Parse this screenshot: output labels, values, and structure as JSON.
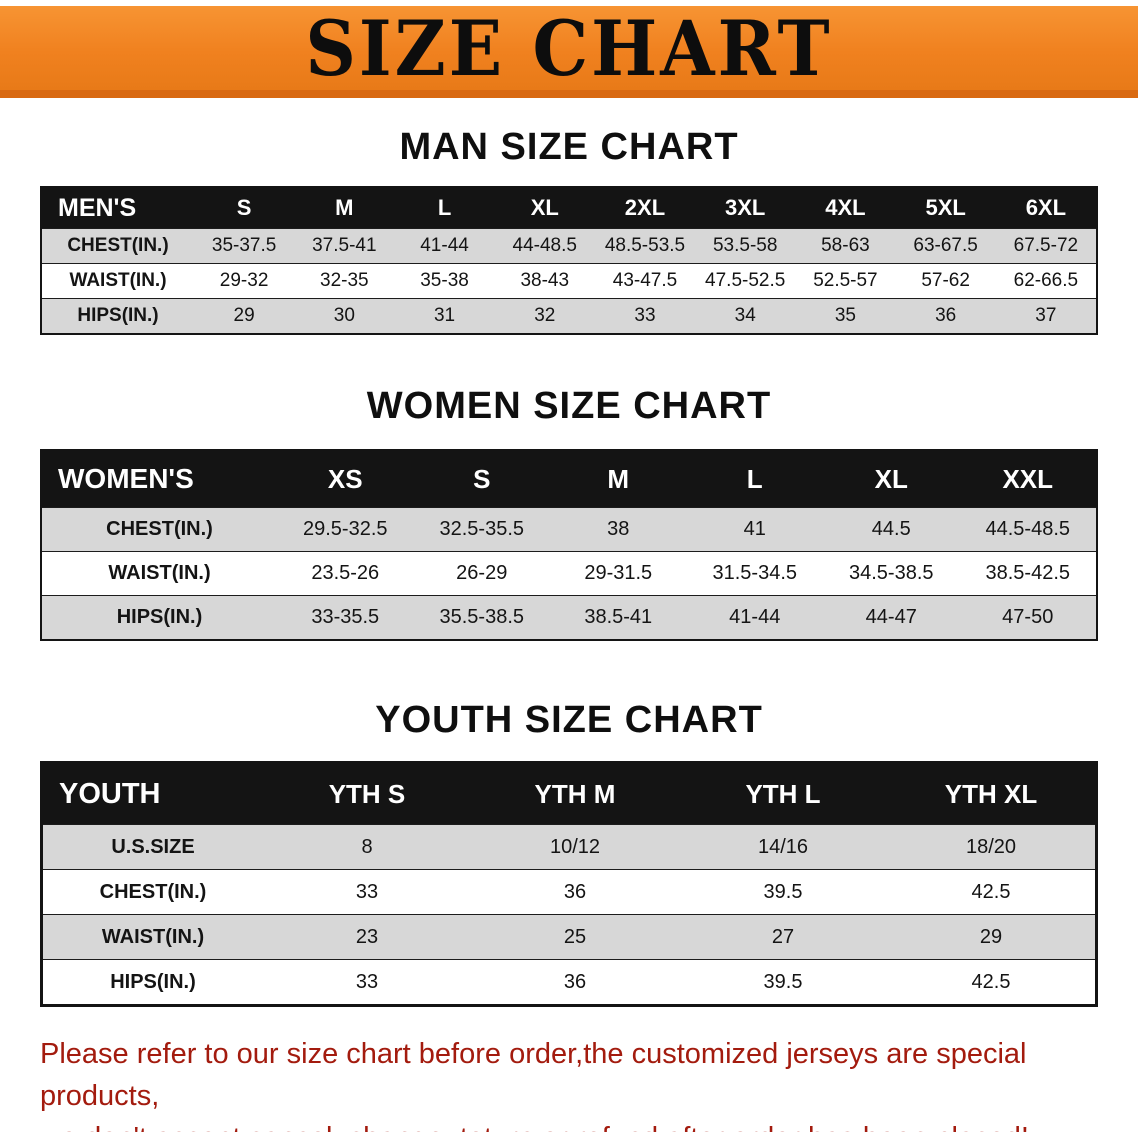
{
  "banner": {
    "title": "SIZE CHART"
  },
  "tables": {
    "men": {
      "heading": "MAN SIZE CHART",
      "label": "MEN'S",
      "columns": [
        "S",
        "M",
        "L",
        "XL",
        "2XL",
        "3XL",
        "4XL",
        "5XL",
        "6XL"
      ],
      "rows": [
        {
          "label": "CHEST(IN.)",
          "values": [
            "35-37.5",
            "37.5-41",
            "41-44",
            "44-48.5",
            "48.5-53.5",
            "53.5-58",
            "58-63",
            "63-67.5",
            "67.5-72"
          ]
        },
        {
          "label": "WAIST(IN.)",
          "values": [
            "29-32",
            "32-35",
            "35-38",
            "38-43",
            "43-47.5",
            "47.5-52.5",
            "52.5-57",
            "57-62",
            "62-66.5"
          ]
        },
        {
          "label": "HIPS(IN.)",
          "values": [
            "29",
            "30",
            "31",
            "32",
            "33",
            "34",
            "35",
            "36",
            "37"
          ]
        }
      ]
    },
    "women": {
      "heading": "WOMEN SIZE CHART",
      "label": "WOMEN'S",
      "columns": [
        "XS",
        "S",
        "M",
        "L",
        "XL",
        "XXL"
      ],
      "rows": [
        {
          "label": "CHEST(IN.)",
          "values": [
            "29.5-32.5",
            "32.5-35.5",
            "38",
            "41",
            "44.5",
            "44.5-48.5"
          ]
        },
        {
          "label": "WAIST(IN.)",
          "values": [
            "23.5-26",
            "26-29",
            "29-31.5",
            "31.5-34.5",
            "34.5-38.5",
            "38.5-42.5"
          ]
        },
        {
          "label": "HIPS(IN.)",
          "values": [
            "33-35.5",
            "35.5-38.5",
            "38.5-41",
            "41-44",
            "44-47",
            "47-50"
          ]
        }
      ]
    },
    "youth": {
      "heading": "YOUTH SIZE CHART",
      "label": "YOUTH",
      "columns": [
        "YTH S",
        "YTH M",
        "YTH L",
        "YTH XL"
      ],
      "rows": [
        {
          "label": "U.S.SIZE",
          "values": [
            "8",
            "10/12",
            "14/16",
            "18/20"
          ]
        },
        {
          "label": "CHEST(IN.)",
          "values": [
            "33",
            "36",
            "39.5",
            "42.5"
          ]
        },
        {
          "label": "WAIST(IN.)",
          "values": [
            "23",
            "25",
            "27",
            "29"
          ]
        },
        {
          "label": "HIPS(IN.)",
          "values": [
            "33",
            "36",
            "39.5",
            "42.5"
          ]
        }
      ]
    }
  },
  "footer": {
    "line1": "Please refer to our size chart before order,the customized jerseys are special products,",
    "line2": "we don't accept cancel, change, teturn or refund after order has been placed!"
  },
  "colors": {
    "banner_orange": "#f0811f",
    "banner_edge": "#d96a12",
    "header_black": "#141414",
    "row_gray": "#d7d7d7",
    "note_red": "#a31b0e"
  }
}
